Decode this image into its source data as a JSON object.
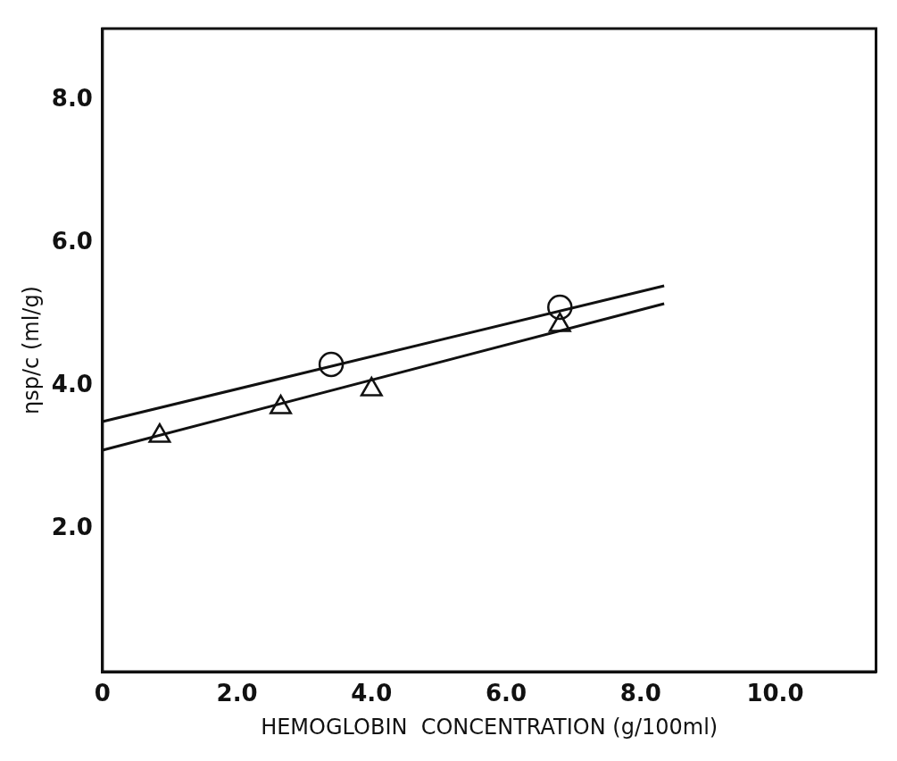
{
  "chart_data": {
    "type": "scatter",
    "xlabel": "HEMOGLOBIN  CONCENTRATION (g/100ml)",
    "ylabel": "ηsp/c (ml/g)",
    "xlim": [
      0,
      11.5
    ],
    "ylim": [
      0,
      9
    ],
    "xticks": [
      0,
      {
        "value": 2,
        "label": "2.0"
      },
      {
        "value": 4,
        "label": "4.0"
      },
      {
        "value": 6,
        "label": "6.0"
      },
      {
        "value": 8,
        "label": "8.0"
      },
      {
        "value": 10,
        "label": "10.0"
      }
    ],
    "yticks": [
      {
        "value": 2,
        "label": "2.0"
      },
      {
        "value": 4,
        "label": "4.0"
      },
      {
        "value": 6,
        "label": "6.0"
      },
      {
        "value": 8,
        "label": "8.0"
      }
    ],
    "grid": false,
    "legend": false,
    "series": [
      {
        "marker": "circle",
        "color": "#111111",
        "x": [
          3.4,
          6.8
        ],
        "values": [
          4.3,
          5.1
        ]
      },
      {
        "marker": "triangle",
        "color": "#111111",
        "x": [
          0.85,
          2.65,
          4.0,
          6.8
        ],
        "values": [
          3.3,
          3.7,
          3.95,
          4.85
        ]
      },
      {
        "type": "line",
        "marker": "none",
        "line_style": "solid",
        "color": "#111111",
        "x": [
          0,
          8.35
        ],
        "values": [
          3.5,
          5.4
        ]
      },
      {
        "type": "line",
        "marker": "none",
        "line_style": "solid",
        "color": "#111111",
        "x": [
          0,
          8.35
        ],
        "values": [
          3.1,
          5.15
        ]
      }
    ]
  }
}
